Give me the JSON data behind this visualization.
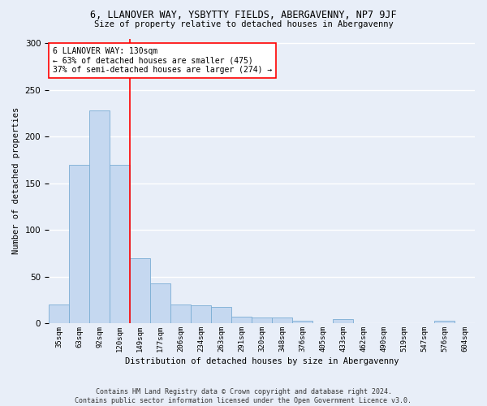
{
  "title1": "6, LLANOVER WAY, YSBYTTY FIELDS, ABERGAVENNY, NP7 9JF",
  "title2": "Size of property relative to detached houses in Abergavenny",
  "xlabel": "Distribution of detached houses by size in Abergavenny",
  "ylabel": "Number of detached properties",
  "footer1": "Contains HM Land Registry data © Crown copyright and database right 2024.",
  "footer2": "Contains public sector information licensed under the Open Government Licence v3.0.",
  "categories": [
    "35sqm",
    "63sqm",
    "92sqm",
    "120sqm",
    "149sqm",
    "177sqm",
    "206sqm",
    "234sqm",
    "263sqm",
    "291sqm",
    "320sqm",
    "348sqm",
    "376sqm",
    "405sqm",
    "433sqm",
    "462sqm",
    "490sqm",
    "519sqm",
    "547sqm",
    "576sqm",
    "604sqm"
  ],
  "values": [
    20,
    170,
    228,
    170,
    70,
    43,
    20,
    19,
    17,
    7,
    6,
    6,
    3,
    0,
    4,
    0,
    0,
    0,
    0,
    3,
    0
  ],
  "bar_color": "#c5d8f0",
  "bar_edgecolor": "#7aadd4",
  "vline_x": 3.5,
  "vline_color": "red",
  "annotation_text": "6 LLANOVER WAY: 130sqm\n← 63% of detached houses are smaller (475)\n37% of semi-detached houses are larger (274) →",
  "annotation_box_edgecolor": "red",
  "annotation_box_facecolor": "white",
  "ylim": [
    0,
    305
  ],
  "background_color": "#e8eef8",
  "plot_bg_color": "#e8eef8",
  "grid_color": "#ffffff",
  "yticks": [
    0,
    50,
    100,
    150,
    200,
    250,
    300
  ]
}
